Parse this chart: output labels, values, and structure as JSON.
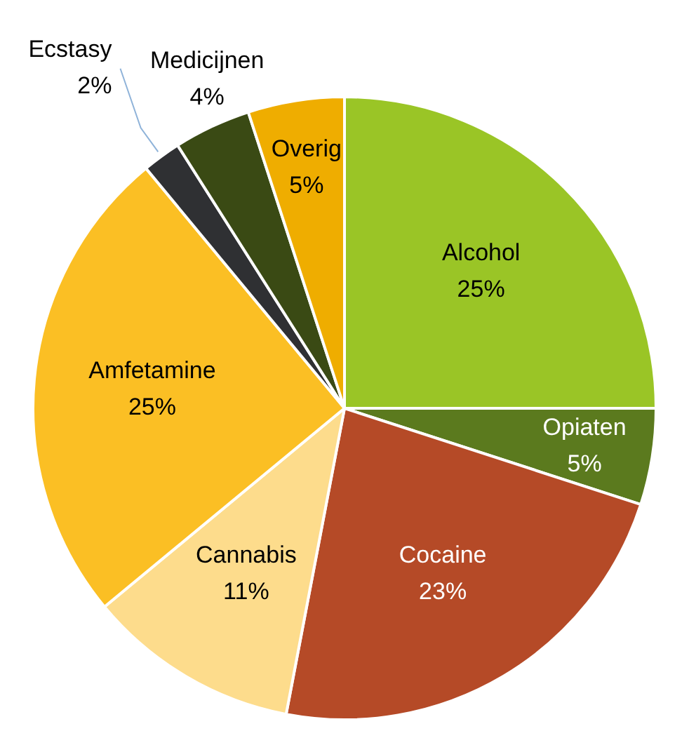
{
  "chart_data": {
    "type": "pie",
    "categories": [
      "Alcohol",
      "Opiaten",
      "Cocaine",
      "Cannabis",
      "Amfetamine",
      "Ecstasy",
      "Medicijnen",
      "Overig"
    ],
    "values": [
      25,
      5,
      23,
      11,
      25,
      2,
      4,
      5
    ],
    "colors": [
      "#9ac526",
      "#5b7a1e",
      "#b54a27",
      "#fddc8c",
      "#fbbf24",
      "#2f3033",
      "#3a4a14",
      "#efad00"
    ],
    "value_labels": [
      "25%",
      "5%",
      "23%",
      "11%",
      "25%",
      "2%",
      "4%",
      "5%"
    ],
    "legend": false
  }
}
